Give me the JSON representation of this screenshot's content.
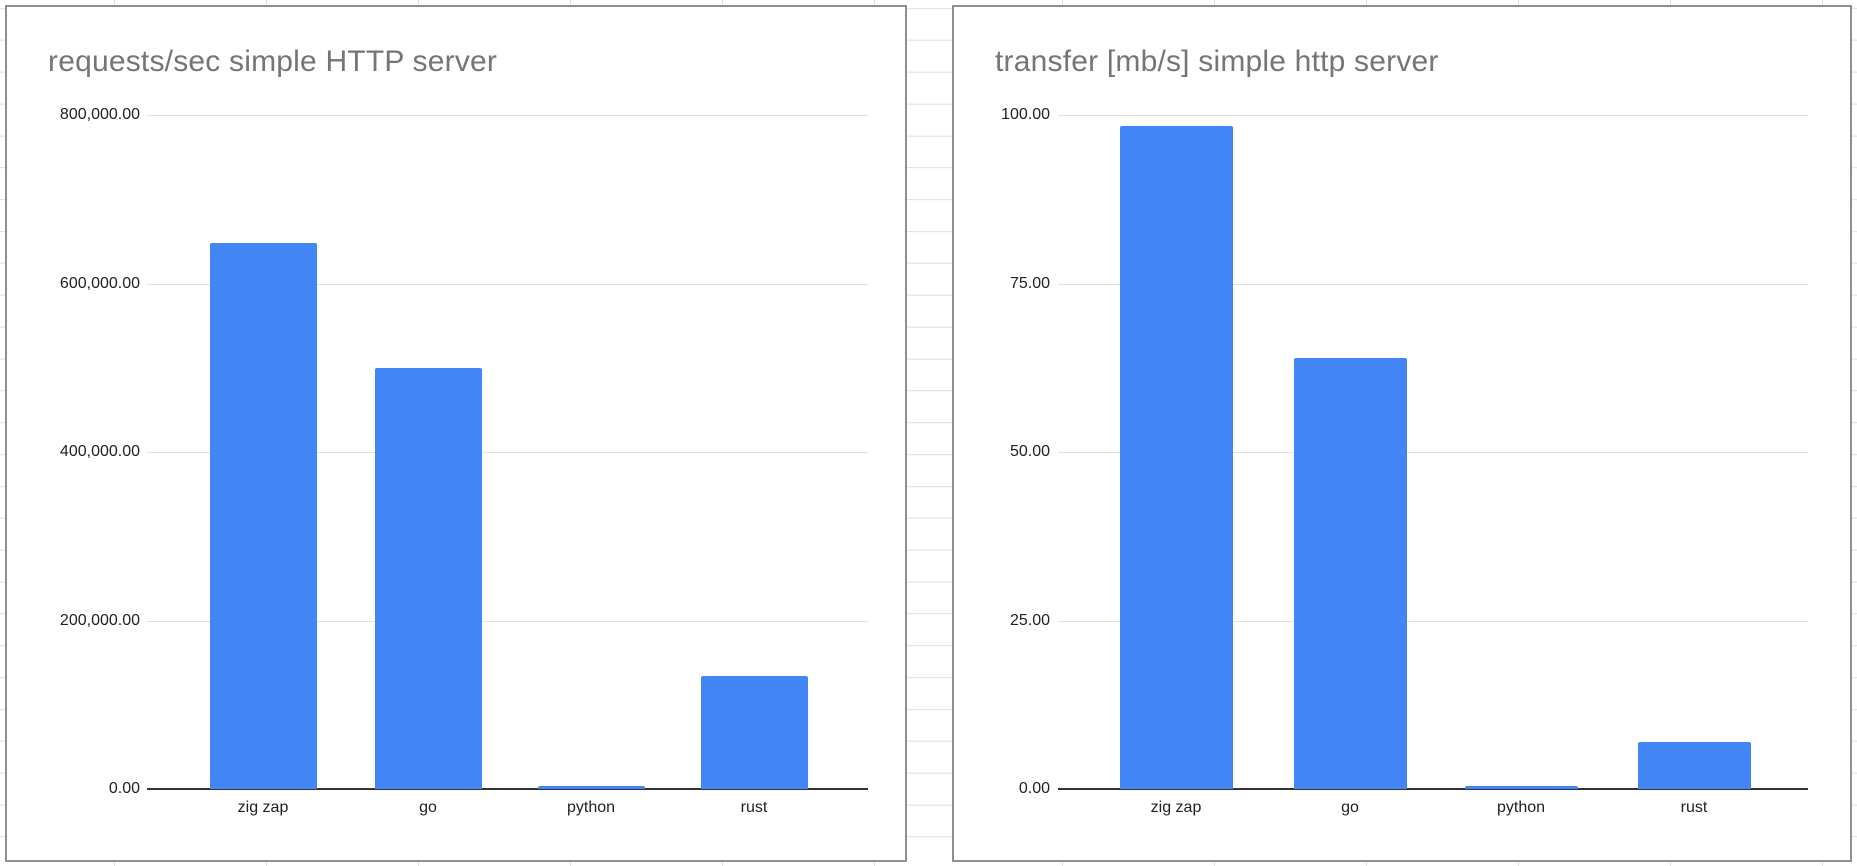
{
  "sheet": {
    "background_color": "#ffffff",
    "grid_line_color": "#dfdfdf"
  },
  "chart_data": [
    {
      "type": "bar",
      "title": "requests/sec simple HTTP server",
      "categories": [
        "zig zap",
        "go",
        "python",
        "rust"
      ],
      "values": [
        648000,
        500000,
        4000,
        134000
      ],
      "xlabel": "",
      "ylabel": "",
      "ylim": [
        0,
        800000
      ],
      "ytick_labels": [
        "800,000.00",
        "600,000.00",
        "400,000.00",
        "200,000.00",
        "0.00"
      ],
      "ytick_values": [
        800000,
        600000,
        400000,
        200000,
        0
      ],
      "legend": "none",
      "gridlines": "horizontal",
      "bar_color": "#4285f4",
      "title_color": "#757575",
      "tick_label_color": "#202124",
      "gridline_color": "#e0e0e0",
      "axis_color": "#333333",
      "frame_color": "#8f8f8f"
    },
    {
      "type": "bar",
      "title": "transfer [mb/s] simple http server",
      "categories": [
        "zig zap",
        "go",
        "python",
        "rust"
      ],
      "values": [
        98.4,
        64,
        0.5,
        7
      ],
      "xlabel": "",
      "ylabel": "",
      "ylim": [
        0,
        100
      ],
      "ytick_labels": [
        "100.00",
        "75.00",
        "50.00",
        "25.00",
        "0.00"
      ],
      "ytick_values": [
        100,
        75,
        50,
        25,
        0
      ],
      "legend": "none",
      "gridlines": "horizontal",
      "bar_color": "#4285f4",
      "title_color": "#757575",
      "tick_label_color": "#202124",
      "gridline_color": "#e0e0e0",
      "axis_color": "#333333",
      "frame_color": "#8f8f8f"
    }
  ]
}
